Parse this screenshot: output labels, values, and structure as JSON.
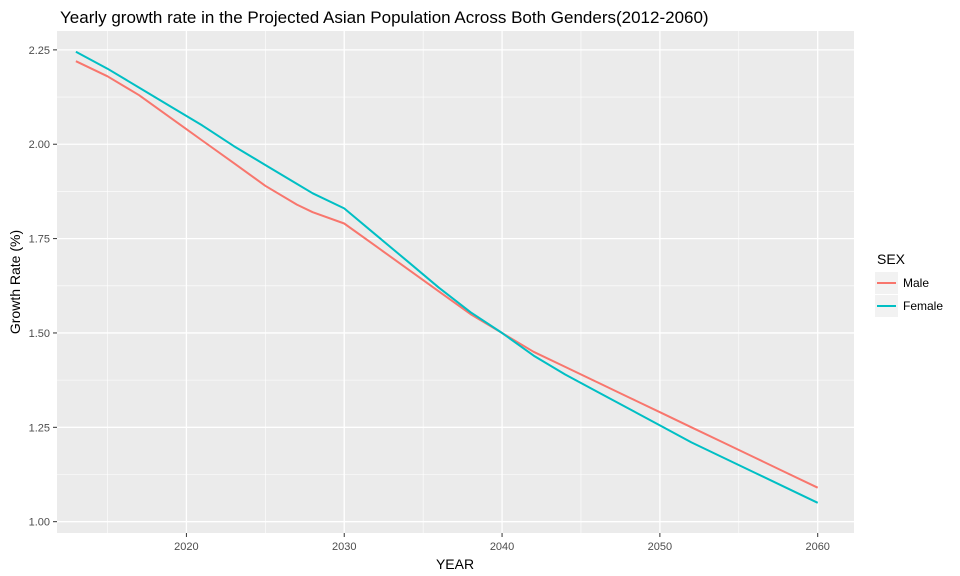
{
  "chart_data": {
    "type": "line",
    "title": "Yearly growth rate in the Projected Asian Population Across Both Genders(2012-2060)",
    "xlabel": "YEAR",
    "ylabel": "Growth Rate (%)",
    "xlim": [
      2011.8,
      2062.3
    ],
    "ylim": [
      0.97,
      2.3
    ],
    "x_ticks": [
      2020,
      2030,
      2040,
      2050,
      2060
    ],
    "x_tick_labels": [
      "2020",
      "2030",
      "2040",
      "2050",
      "2060"
    ],
    "y_ticks": [
      1.0,
      1.25,
      1.5,
      1.75,
      2.0,
      2.25
    ],
    "y_tick_labels": [
      "1.00",
      "1.25",
      "1.50",
      "1.75",
      "2.00",
      "2.25"
    ],
    "grid": true,
    "background": "#ebebeb",
    "legend": {
      "title": "SEX",
      "placement": "right"
    },
    "series": [
      {
        "name": "Male",
        "color": "#f8766d",
        "x": [
          2013,
          2015,
          2017,
          2019,
          2021,
          2023,
          2025,
          2027,
          2028,
          2030,
          2032,
          2034,
          2036,
          2038,
          2040,
          2042,
          2044,
          2046,
          2048,
          2050,
          2052,
          2054,
          2056,
          2058,
          2060
        ],
        "y": [
          2.22,
          2.18,
          2.13,
          2.07,
          2.01,
          1.95,
          1.89,
          1.84,
          1.82,
          1.79,
          1.73,
          1.67,
          1.61,
          1.55,
          1.5,
          1.45,
          1.41,
          1.37,
          1.33,
          1.29,
          1.25,
          1.21,
          1.17,
          1.13,
          1.09
        ]
      },
      {
        "name": "Female",
        "color": "#00bfc4",
        "x": [
          2013,
          2015,
          2017,
          2019,
          2021,
          2023,
          2025,
          2027,
          2028,
          2030,
          2032,
          2034,
          2036,
          2038,
          2040,
          2042,
          2044,
          2046,
          2048,
          2050,
          2052,
          2054,
          2056,
          2058,
          2060
        ],
        "y": [
          2.245,
          2.2,
          2.15,
          2.1,
          2.05,
          1.995,
          1.945,
          1.895,
          1.87,
          1.83,
          1.76,
          1.69,
          1.62,
          1.555,
          1.5,
          1.44,
          1.39,
          1.345,
          1.3,
          1.255,
          1.21,
          1.17,
          1.13,
          1.09,
          1.05
        ]
      }
    ]
  }
}
